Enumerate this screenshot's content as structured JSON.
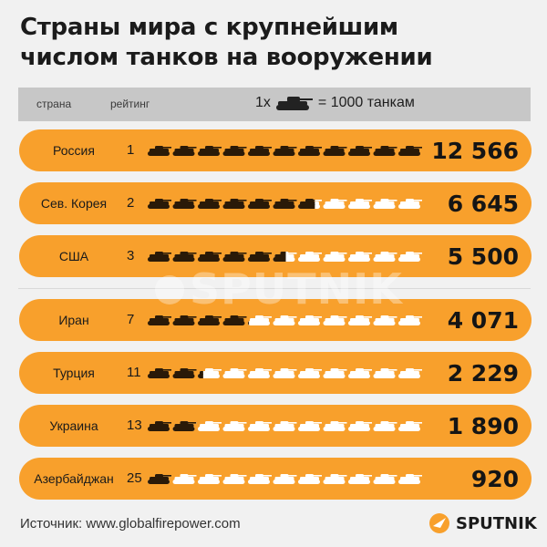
{
  "title_line1": "Страны мира с крупнейшим",
  "title_line2": "числом танков на вооружении",
  "header": {
    "country": "страна",
    "rank": "рейтинг",
    "legend_prefix": "1х",
    "legend_suffix": "= 1000 танкам"
  },
  "colors": {
    "pill": "#f8a02c",
    "tank_filled": "#2a1a08",
    "tank_empty": "#ffffff"
  },
  "chart_data": {
    "type": "bar",
    "unit_per_icon": 1000,
    "icons_per_row": 11,
    "categories": [
      "Россия",
      "Сев. Корея",
      "США",
      "Иран",
      "Турция",
      "Украина",
      "Азербайджан"
    ],
    "ranks": [
      "1",
      "2",
      "3",
      "7",
      "11",
      "13",
      "25"
    ],
    "values": [
      12566,
      6645,
      5500,
      4071,
      2229,
      1890,
      920
    ],
    "value_labels": [
      "12 566",
      "6 645",
      "5 500",
      "4 071",
      "2 229",
      "1 890",
      "920"
    ]
  },
  "source": "Источник: www.globalfirepower.com",
  "brand": "SPUTNIK",
  "watermark": "SPUTNIK"
}
